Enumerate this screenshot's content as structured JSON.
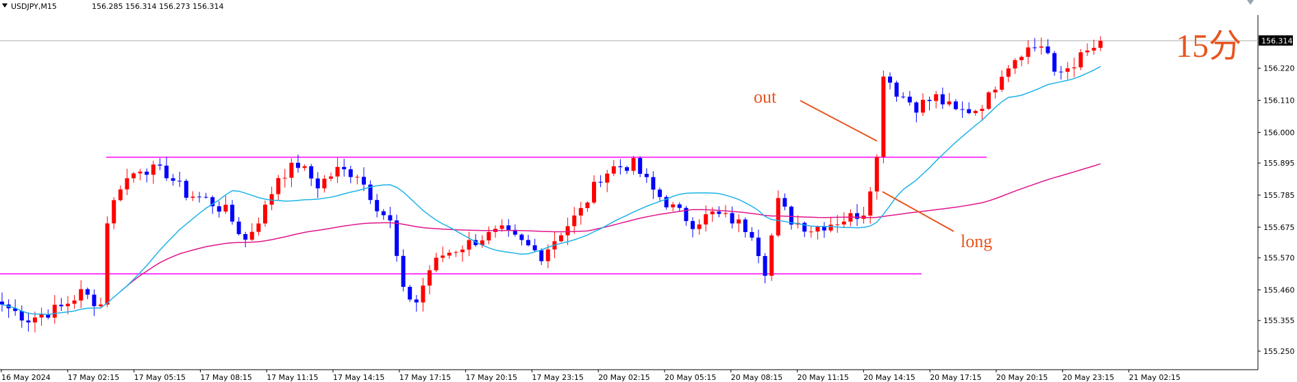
{
  "header": {
    "symbol": "USDJPY,M15",
    "ohlc": "156.285 156.314 156.273 156.314"
  },
  "price_axis": {
    "ticks": [
      "156.220",
      "156.110",
      "156.000",
      "155.895",
      "155.785",
      "155.675",
      "155.570",
      "155.460",
      "155.355",
      "155.250"
    ],
    "current_price": "156.314"
  },
  "time_axis": {
    "labels": [
      "16 May 2024",
      "17 May 02:15",
      "17 May 05:15",
      "17 May 08:15",
      "17 May 11:15",
      "17 May 14:15",
      "17 May 17:15",
      "17 May 20:15",
      "17 May 23:15",
      "20 May 02:15",
      "20 May 05:15",
      "20 May 08:15",
      "20 May 11:15",
      "20 May 14:15",
      "20 May 17:15",
      "20 May 20:15",
      "20 May 23:15",
      "21 May 02:15"
    ]
  },
  "annotations": {
    "timeframe": "15分",
    "out_label": "out",
    "long_label": "long"
  },
  "colors": {
    "bull": "#ff0000",
    "bear": "#0000ff",
    "ma_fast": "#1ab2e8",
    "ma_slow": "#e0148c",
    "level": "#ff00ff",
    "annotation": "#e8541f"
  },
  "chart_data": {
    "type": "candlestick",
    "symbol": "USDJPY",
    "timeframe": "M15",
    "ylim": [
      155.21,
      156.36
    ],
    "levels": [
      155.915,
      155.515
    ],
    "close_path": [
      [
        0,
        155.41
      ],
      [
        4,
        155.36
      ],
      [
        9,
        155.4
      ],
      [
        12,
        155.45
      ],
      [
        15,
        155.41
      ],
      [
        16,
        155.7
      ],
      [
        18,
        155.82
      ],
      [
        21,
        155.88
      ],
      [
        25,
        155.86
      ],
      [
        28,
        155.79
      ],
      [
        31,
        155.77
      ],
      [
        34,
        155.73
      ],
      [
        37,
        155.63
      ],
      [
        40,
        155.74
      ],
      [
        42,
        155.85
      ],
      [
        45,
        155.89
      ],
      [
        48,
        155.82
      ],
      [
        51,
        155.87
      ],
      [
        54,
        155.86
      ],
      [
        57,
        155.75
      ],
      [
        59,
        155.69
      ],
      [
        61,
        155.45
      ],
      [
        63,
        155.42
      ],
      [
        65,
        155.53
      ],
      [
        67,
        155.58
      ],
      [
        70,
        155.61
      ],
      [
        73,
        155.64
      ],
      [
        76,
        155.66
      ],
      [
        79,
        155.62
      ],
      [
        82,
        155.58
      ],
      [
        85,
        155.66
      ],
      [
        88,
        155.73
      ],
      [
        91,
        155.85
      ],
      [
        93,
        155.88
      ],
      [
        96,
        155.89
      ],
      [
        99,
        155.8
      ],
      [
        102,
        155.74
      ],
      [
        105,
        155.69
      ],
      [
        108,
        155.72
      ],
      [
        111,
        155.7
      ],
      [
        114,
        155.66
      ],
      [
        116,
        155.53
      ],
      [
        118,
        155.76
      ],
      [
        120,
        155.7
      ],
      [
        123,
        155.67
      ],
      [
        126,
        155.69
      ],
      [
        129,
        155.71
      ],
      [
        131,
        155.73
      ],
      [
        132,
        155.82
      ],
      [
        133,
        155.91
      ],
      [
        134,
        156.21
      ],
      [
        136,
        156.14
      ],
      [
        139,
        156.09
      ],
      [
        142,
        156.12
      ],
      [
        145,
        156.07
      ],
      [
        148,
        156.08
      ],
      [
        150,
        156.12
      ],
      [
        152,
        156.21
      ],
      [
        155,
        156.28
      ],
      [
        158,
        156.3
      ],
      [
        159,
        156.27
      ],
      [
        160,
        156.19
      ],
      [
        163,
        156.24
      ],
      [
        166,
        156.29
      ],
      [
        167,
        156.314
      ]
    ]
  }
}
